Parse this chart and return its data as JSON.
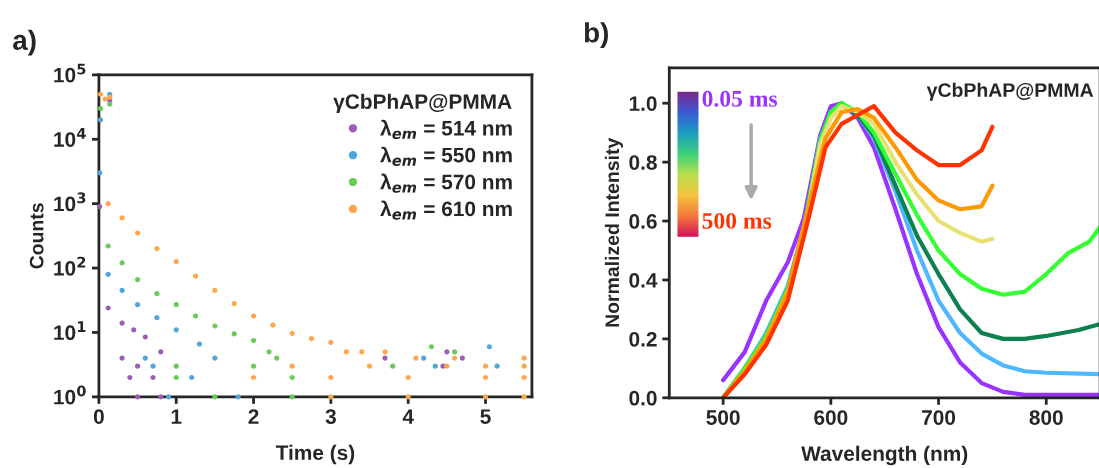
{
  "chart_data": [
    {
      "type": "scatter",
      "title": "a)",
      "xlabel": "Time (s)",
      "ylabel": "Counts",
      "legend_title": "γCbPhAP@PMMA",
      "legend": "top right",
      "marker": "circle",
      "log": "y",
      "xlim": [
        0,
        5.6
      ],
      "ylim": [
        1,
        100000
      ],
      "xticks": [
        0,
        1,
        2,
        3,
        4,
        5
      ],
      "yticks": [
        {
          "value": 1,
          "label": "10$^{0}$"
        },
        {
          "value": 10,
          "label": "10$^{1}$"
        },
        {
          "value": 100,
          "label": "10$^{2}$"
        },
        {
          "value": 1000,
          "label": "10$^{3}$"
        },
        {
          "value": 10000,
          "label": "10$^{4}$"
        },
        {
          "value": 100000,
          "label": "10$^{5}$"
        }
      ],
      "series": [
        {
          "name": "λ$_{em}$ = 514 nm",
          "color": "#9a5fb4",
          "x": [
            0.01,
            0.14,
            0.12,
            0.3,
            0.45,
            0.6,
            0.8,
            4.5,
            4.7,
            4.45,
            3.7,
            0.3,
            0.5,
            0.4,
            0.7,
            0.5,
            0.8
          ],
          "values": [
            900,
            40000,
            24,
            14,
            11,
            8.5,
            5,
            5,
            4,
            3,
            4,
            4,
            3,
            2,
            2,
            1,
            1
          ]
        },
        {
          "name": "λ$_{em}$ = 550 nm",
          "color": "#4ea6dc",
          "x": [
            0.01,
            0.02,
            0.14,
            0.12,
            0.3,
            0.5,
            0.75,
            1.0,
            1.3,
            4.2,
            5.05,
            4.35,
            5.15,
            0.6,
            1.5,
            0.7,
            1.2,
            0.9,
            1.8
          ],
          "values": [
            3000,
            20000,
            50000,
            80,
            45,
            27,
            17,
            11,
            6.6,
            4,
            6,
            3,
            3,
            4,
            4,
            3,
            2,
            1,
            1
          ]
        },
        {
          "name": "λ$_{em}$ = 570 nm",
          "color": "#66cc55",
          "x": [
            0.02,
            0.14,
            0.12,
            0.3,
            0.5,
            0.75,
            1.0,
            1.25,
            1.5,
            1.75,
            2.0,
            2.2,
            4.3,
            4.6,
            2.3,
            1.0,
            2.0,
            3.8,
            1.0,
            2.5,
            1.5,
            2.5
          ],
          "values": [
            30000,
            35000,
            220,
            120,
            66,
            40,
            27,
            18,
            12.6,
            9.5,
            7.5,
            5,
            6,
            5,
            4,
            3,
            3,
            3,
            2,
            2,
            1,
            1
          ]
        },
        {
          "name": "λ$_{em}$ = 610 nm",
          "color": "#ffa64d",
          "x": [
            0.02,
            0.08,
            0.14,
            0.12,
            0.3,
            0.5,
            0.75,
            1.0,
            1.25,
            1.5,
            1.75,
            2.0,
            2.25,
            2.5,
            2.75,
            3.0,
            3.2,
            3.4,
            3.7,
            4.1,
            4.6,
            5.5,
            2.5,
            3.5,
            4.5,
            5.0,
            5.5,
            2.0,
            3.0,
            4.0,
            5.0,
            5.5,
            3.0,
            4.0,
            5.0,
            5.5
          ],
          "values": [
            50000,
            42000,
            45000,
            1000,
            600,
            350,
            200,
            126,
            75,
            45,
            28,
            18,
            13,
            9.7,
            8,
            7,
            5,
            5,
            5,
            4,
            4,
            4,
            3,
            3,
            3,
            3,
            3,
            2,
            2,
            2,
            2,
            2,
            1,
            1,
            1,
            1
          ]
        }
      ]
    },
    {
      "type": "line",
      "title": "b)",
      "xlabel": "Wavelength (nm)",
      "ylabel": "Normalized Intensity",
      "annotations": [
        "γCbPhAP@PMMA",
        "0.05 ms",
        "500 ms"
      ],
      "xlim": [
        450,
        850
      ],
      "ylim": [
        0,
        1.12
      ],
      "xticks": [
        500,
        600,
        700,
        800
      ],
      "yticks": [
        {
          "value": 0,
          "label": "0.0"
        },
        {
          "value": 0.2,
          "label": "0.2"
        },
        {
          "value": 0.4,
          "label": "0.4"
        },
        {
          "value": 0.6,
          "label": "0.6"
        },
        {
          "value": 0.8,
          "label": "0.8"
        },
        {
          "value": 1.0,
          "label": "1.0"
        }
      ],
      "series": [
        {
          "color": "#9933ff",
          "x": [
            500,
            520,
            540,
            560,
            575,
            590,
            600,
            610,
            625,
            640,
            660,
            680,
            700,
            720,
            740,
            760,
            780,
            800,
            850
          ],
          "values": [
            0.06,
            0.155,
            0.33,
            0.46,
            0.61,
            0.89,
            0.99,
            1.0,
            0.95,
            0.85,
            0.64,
            0.42,
            0.24,
            0.12,
            0.05,
            0.02,
            0.01,
            0.01,
            0.01
          ]
        },
        {
          "color": "#4db8ff",
          "x": [
            500,
            520,
            540,
            560,
            575,
            590,
            600,
            610,
            625,
            640,
            660,
            680,
            700,
            720,
            740,
            760,
            780,
            800,
            850
          ],
          "values": [
            0.0,
            0.1,
            0.22,
            0.38,
            0.58,
            0.88,
            0.97,
            1.0,
            0.96,
            0.88,
            0.7,
            0.5,
            0.33,
            0.22,
            0.15,
            0.11,
            0.09,
            0.085,
            0.08
          ]
        },
        {
          "color": "#0d8050",
          "x": [
            500,
            520,
            540,
            560,
            575,
            590,
            600,
            610,
            625,
            640,
            660,
            680,
            700,
            720,
            740,
            760,
            780,
            800,
            830,
            850
          ],
          "values": [
            0.0,
            0.1,
            0.21,
            0.37,
            0.57,
            0.87,
            0.97,
            1.0,
            0.96,
            0.89,
            0.72,
            0.55,
            0.42,
            0.3,
            0.22,
            0.2,
            0.2,
            0.21,
            0.23,
            0.25
          ]
        },
        {
          "color": "#33ff33",
          "x": [
            500,
            520,
            540,
            560,
            575,
            590,
            600,
            610,
            625,
            640,
            660,
            680,
            700,
            720,
            740,
            760,
            780,
            800,
            820,
            840,
            850
          ],
          "values": [
            0.0,
            0.1,
            0.21,
            0.37,
            0.57,
            0.87,
            0.97,
            1.0,
            0.97,
            0.9,
            0.76,
            0.62,
            0.5,
            0.42,
            0.37,
            0.35,
            0.36,
            0.42,
            0.49,
            0.53,
            0.58
          ]
        },
        {
          "color": "#e8e070",
          "x": [
            500,
            520,
            540,
            560,
            575,
            590,
            600,
            610,
            625,
            640,
            660,
            680,
            700,
            720,
            740,
            750
          ],
          "values": [
            0.0,
            0.09,
            0.2,
            0.36,
            0.56,
            0.86,
            0.95,
            0.99,
            0.97,
            0.93,
            0.8,
            0.69,
            0.6,
            0.56,
            0.53,
            0.54
          ]
        },
        {
          "color": "#ff9900",
          "x": [
            500,
            520,
            540,
            560,
            580,
            595,
            610,
            625,
            640,
            660,
            680,
            700,
            720,
            740,
            750
          ],
          "values": [
            0.0,
            0.09,
            0.2,
            0.36,
            0.66,
            0.88,
            0.97,
            0.98,
            0.95,
            0.85,
            0.74,
            0.67,
            0.64,
            0.65,
            0.72
          ]
        },
        {
          "color": "#ff3300",
          "x": [
            500,
            520,
            540,
            560,
            580,
            595,
            610,
            625,
            640,
            660,
            680,
            700,
            720,
            740,
            750
          ],
          "values": [
            0.0,
            0.08,
            0.18,
            0.33,
            0.62,
            0.85,
            0.93,
            0.96,
            0.99,
            0.9,
            0.84,
            0.79,
            0.79,
            0.84,
            0.92
          ]
        }
      ]
    }
  ]
}
